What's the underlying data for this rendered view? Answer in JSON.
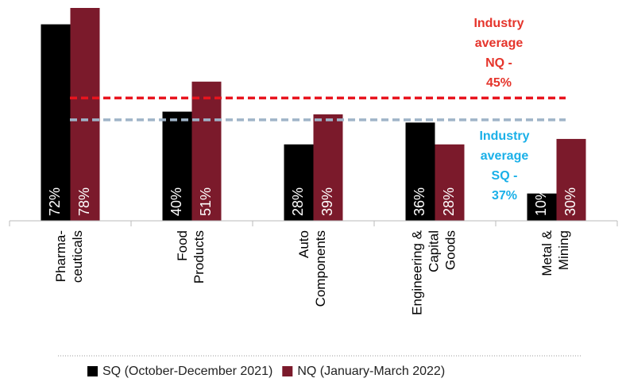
{
  "chart_data": {
    "type": "bar",
    "categories": [
      "Pharma-\nceuticals",
      "Food\nProducts",
      "Auto\nComponents",
      "Engineering &\nCapital\nGoods",
      "Metal &\nMining"
    ],
    "series": [
      {
        "name": "SQ (October-December 2021)",
        "color": "#000000",
        "values": [
          72,
          40,
          28,
          36,
          10
        ],
        "value_labels": [
          "72%",
          "40%",
          "28%",
          "36%",
          "10%"
        ]
      },
      {
        "name": "NQ (January-March 2022)",
        "color": "#7b1a2b",
        "values": [
          78,
          51,
          39,
          28,
          30
        ],
        "value_labels": [
          "78%",
          "51%",
          "39%",
          "28%",
          "30%"
        ]
      }
    ],
    "reference_lines": [
      {
        "label": "Industry\naverage\nNQ -\n45%",
        "value": 45,
        "color": "#e8141e",
        "text_color": "#e5342b"
      },
      {
        "label": "Industry\naverage\nSQ -\n37%",
        "value": 37,
        "color": "#9fb4c8",
        "text_color": "#1ab0e8"
      }
    ]
  }
}
